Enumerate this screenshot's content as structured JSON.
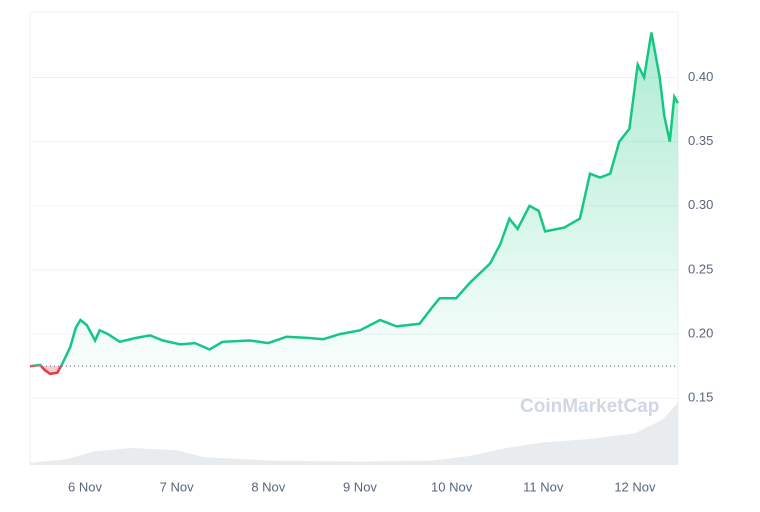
{
  "chart_data": {
    "type": "line",
    "watermark": "CoinMarketCap",
    "xlim": [
      5.4,
      12.47
    ],
    "xticks": [
      {
        "value": 6,
        "label": "6 Nov"
      },
      {
        "value": 7,
        "label": "7 Nov"
      },
      {
        "value": 8,
        "label": "8 Nov"
      },
      {
        "value": 9,
        "label": "9 Nov"
      },
      {
        "value": 10,
        "label": "10 Nov"
      },
      {
        "value": 11,
        "label": "11 Nov"
      },
      {
        "value": 12,
        "label": "12 Nov"
      }
    ],
    "ylim": [
      0.098,
      0.451
    ],
    "yticks": [
      {
        "value": 0.15,
        "label": "0.15"
      },
      {
        "value": 0.2,
        "label": "0.20"
      },
      {
        "value": 0.25,
        "label": "0.25"
      },
      {
        "value": 0.3,
        "label": "0.30"
      },
      {
        "value": 0.35,
        "label": "0.35"
      },
      {
        "value": 0.4,
        "label": "0.40"
      }
    ],
    "grid": true,
    "baseline": 0.175,
    "up_color": "#16c784",
    "down_color": "#ea3943",
    "series": [
      {
        "x": [
          5.4,
          5.51,
          5.56,
          5.62,
          5.7,
          5.76,
          5.84,
          5.9,
          5.95,
          6.02,
          6.11,
          6.16,
          6.25,
          6.38,
          6.55,
          6.71,
          6.85,
          7.04,
          7.2,
          7.36,
          7.5,
          7.8,
          8.0,
          8.2,
          8.45,
          8.6,
          8.78,
          9.0,
          9.22,
          9.4,
          9.65,
          9.8,
          9.87,
          10.05,
          10.2,
          10.42,
          10.53,
          10.63,
          10.72,
          10.85,
          10.95,
          11.02,
          11.23,
          11.4,
          11.51,
          11.62,
          11.73,
          11.83,
          11.94,
          12.03,
          12.1,
          12.18,
          12.27,
          12.32,
          12.38,
          12.43,
          12.47
        ],
        "values": [
          0.175,
          0.176,
          0.172,
          0.169,
          0.17,
          0.178,
          0.19,
          0.205,
          0.211,
          0.207,
          0.195,
          0.203,
          0.2,
          0.194,
          0.197,
          0.199,
          0.195,
          0.192,
          0.193,
          0.188,
          0.194,
          0.195,
          0.193,
          0.198,
          0.197,
          0.196,
          0.2,
          0.203,
          0.211,
          0.206,
          0.208,
          0.222,
          0.228,
          0.228,
          0.24,
          0.255,
          0.27,
          0.29,
          0.282,
          0.3,
          0.296,
          0.28,
          0.283,
          0.29,
          0.325,
          0.322,
          0.325,
          0.35,
          0.36,
          0.41,
          0.4,
          0.435,
          0.4,
          0.37,
          0.35,
          0.385,
          0.38
        ]
      },
      {
        "axis": "y2",
        "color": "#e9ecef",
        "x": [
          5.4,
          5.8,
          6.1,
          6.5,
          7.0,
          7.3,
          8.0,
          9.0,
          9.8,
          10.2,
          10.6,
          11.0,
          11.5,
          12.0,
          12.3,
          12.47
        ],
        "values": [
          2,
          5,
          12,
          15,
          13,
          7,
          4,
          3,
          4,
          8,
          15,
          20,
          23,
          28,
          40,
          55
        ]
      }
    ],
    "y2lim": [
      0,
      400
    ]
  }
}
